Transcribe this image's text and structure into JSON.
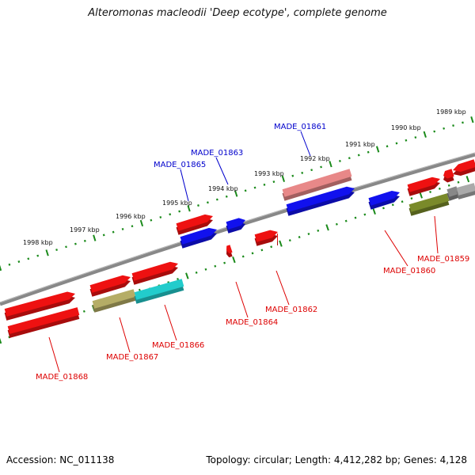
{
  "title": "Alteromonas macleodii 'Deep ecotype', complete genome",
  "footer": {
    "accession": "Accession: NC_011138",
    "summary": "Topology: circular; Length: 4,412,282 bp; Genes: 4,128"
  },
  "colors": {
    "backbone": "#888888",
    "ticks": "#1a8a1a",
    "label_forward": "#0000cc",
    "label_reverse": "#dd0000",
    "leader_forward": "#0000cc",
    "leader_reverse": "#dd0000"
  },
  "ticks": [
    {
      "label": "1989 kbp"
    },
    {
      "label": "1990 kbp"
    },
    {
      "label": "1991 kbp"
    },
    {
      "label": "1992 kbp"
    },
    {
      "label": "1993 kbp"
    },
    {
      "label": "1994 kbp"
    },
    {
      "label": "1995 kbp"
    },
    {
      "label": "1996 kbp"
    },
    {
      "label": "1997 kbp"
    },
    {
      "label": "1998 kbp"
    }
  ],
  "gene_labels": [
    {
      "text": "MADE_01861",
      "strand": "forward"
    },
    {
      "text": "MADE_01863",
      "strand": "forward"
    },
    {
      "text": "MADE_01865",
      "strand": "forward"
    },
    {
      "text": "MADE_01859",
      "strand": "reverse"
    },
    {
      "text": "MADE_01860",
      "strand": "reverse"
    },
    {
      "text": "MADE_01862",
      "strand": "reverse"
    },
    {
      "text": "MADE_01864",
      "strand": "reverse"
    },
    {
      "text": "MADE_01866",
      "strand": "reverse"
    },
    {
      "text": "MADE_01867",
      "strand": "reverse"
    },
    {
      "text": "MADE_01868",
      "strand": "reverse"
    }
  ],
  "features": [
    {
      "name": "feature-1",
      "color": "#ee1111"
    },
    {
      "name": "feature-2",
      "color": "#ee1111"
    },
    {
      "name": "feature-3",
      "color": "#ee1111"
    },
    {
      "name": "feature-4",
      "color": "#e88888"
    },
    {
      "name": "feature-5",
      "color": "#1111ee"
    },
    {
      "name": "feature-6",
      "color": "#ee1111"
    },
    {
      "name": "feature-7",
      "color": "#1111ee"
    },
    {
      "name": "feature-8",
      "color": "#1111ee"
    },
    {
      "name": "feature-9",
      "color": "#1111ee"
    },
    {
      "name": "feature-10",
      "color": "#ee1111"
    },
    {
      "name": "feature-11",
      "color": "#ee1111"
    },
    {
      "name": "feature-12",
      "color": "#ee1111"
    },
    {
      "name": "feature-13",
      "color": "#ee1111"
    },
    {
      "name": "feature-14",
      "color": "#ee1111"
    },
    {
      "name": "feature-15",
      "color": "#7a8a2a"
    },
    {
      "name": "feature-16",
      "color": "#888888"
    },
    {
      "name": "feature-17",
      "color": "#aaaaaa"
    },
    {
      "name": "feature-18",
      "color": "#b5ad66"
    },
    {
      "name": "feature-19",
      "color": "#22cccc"
    },
    {
      "name": "feature-20",
      "color": "#ee1111"
    },
    {
      "name": "feature-21",
      "color": "#ee1111"
    }
  ]
}
